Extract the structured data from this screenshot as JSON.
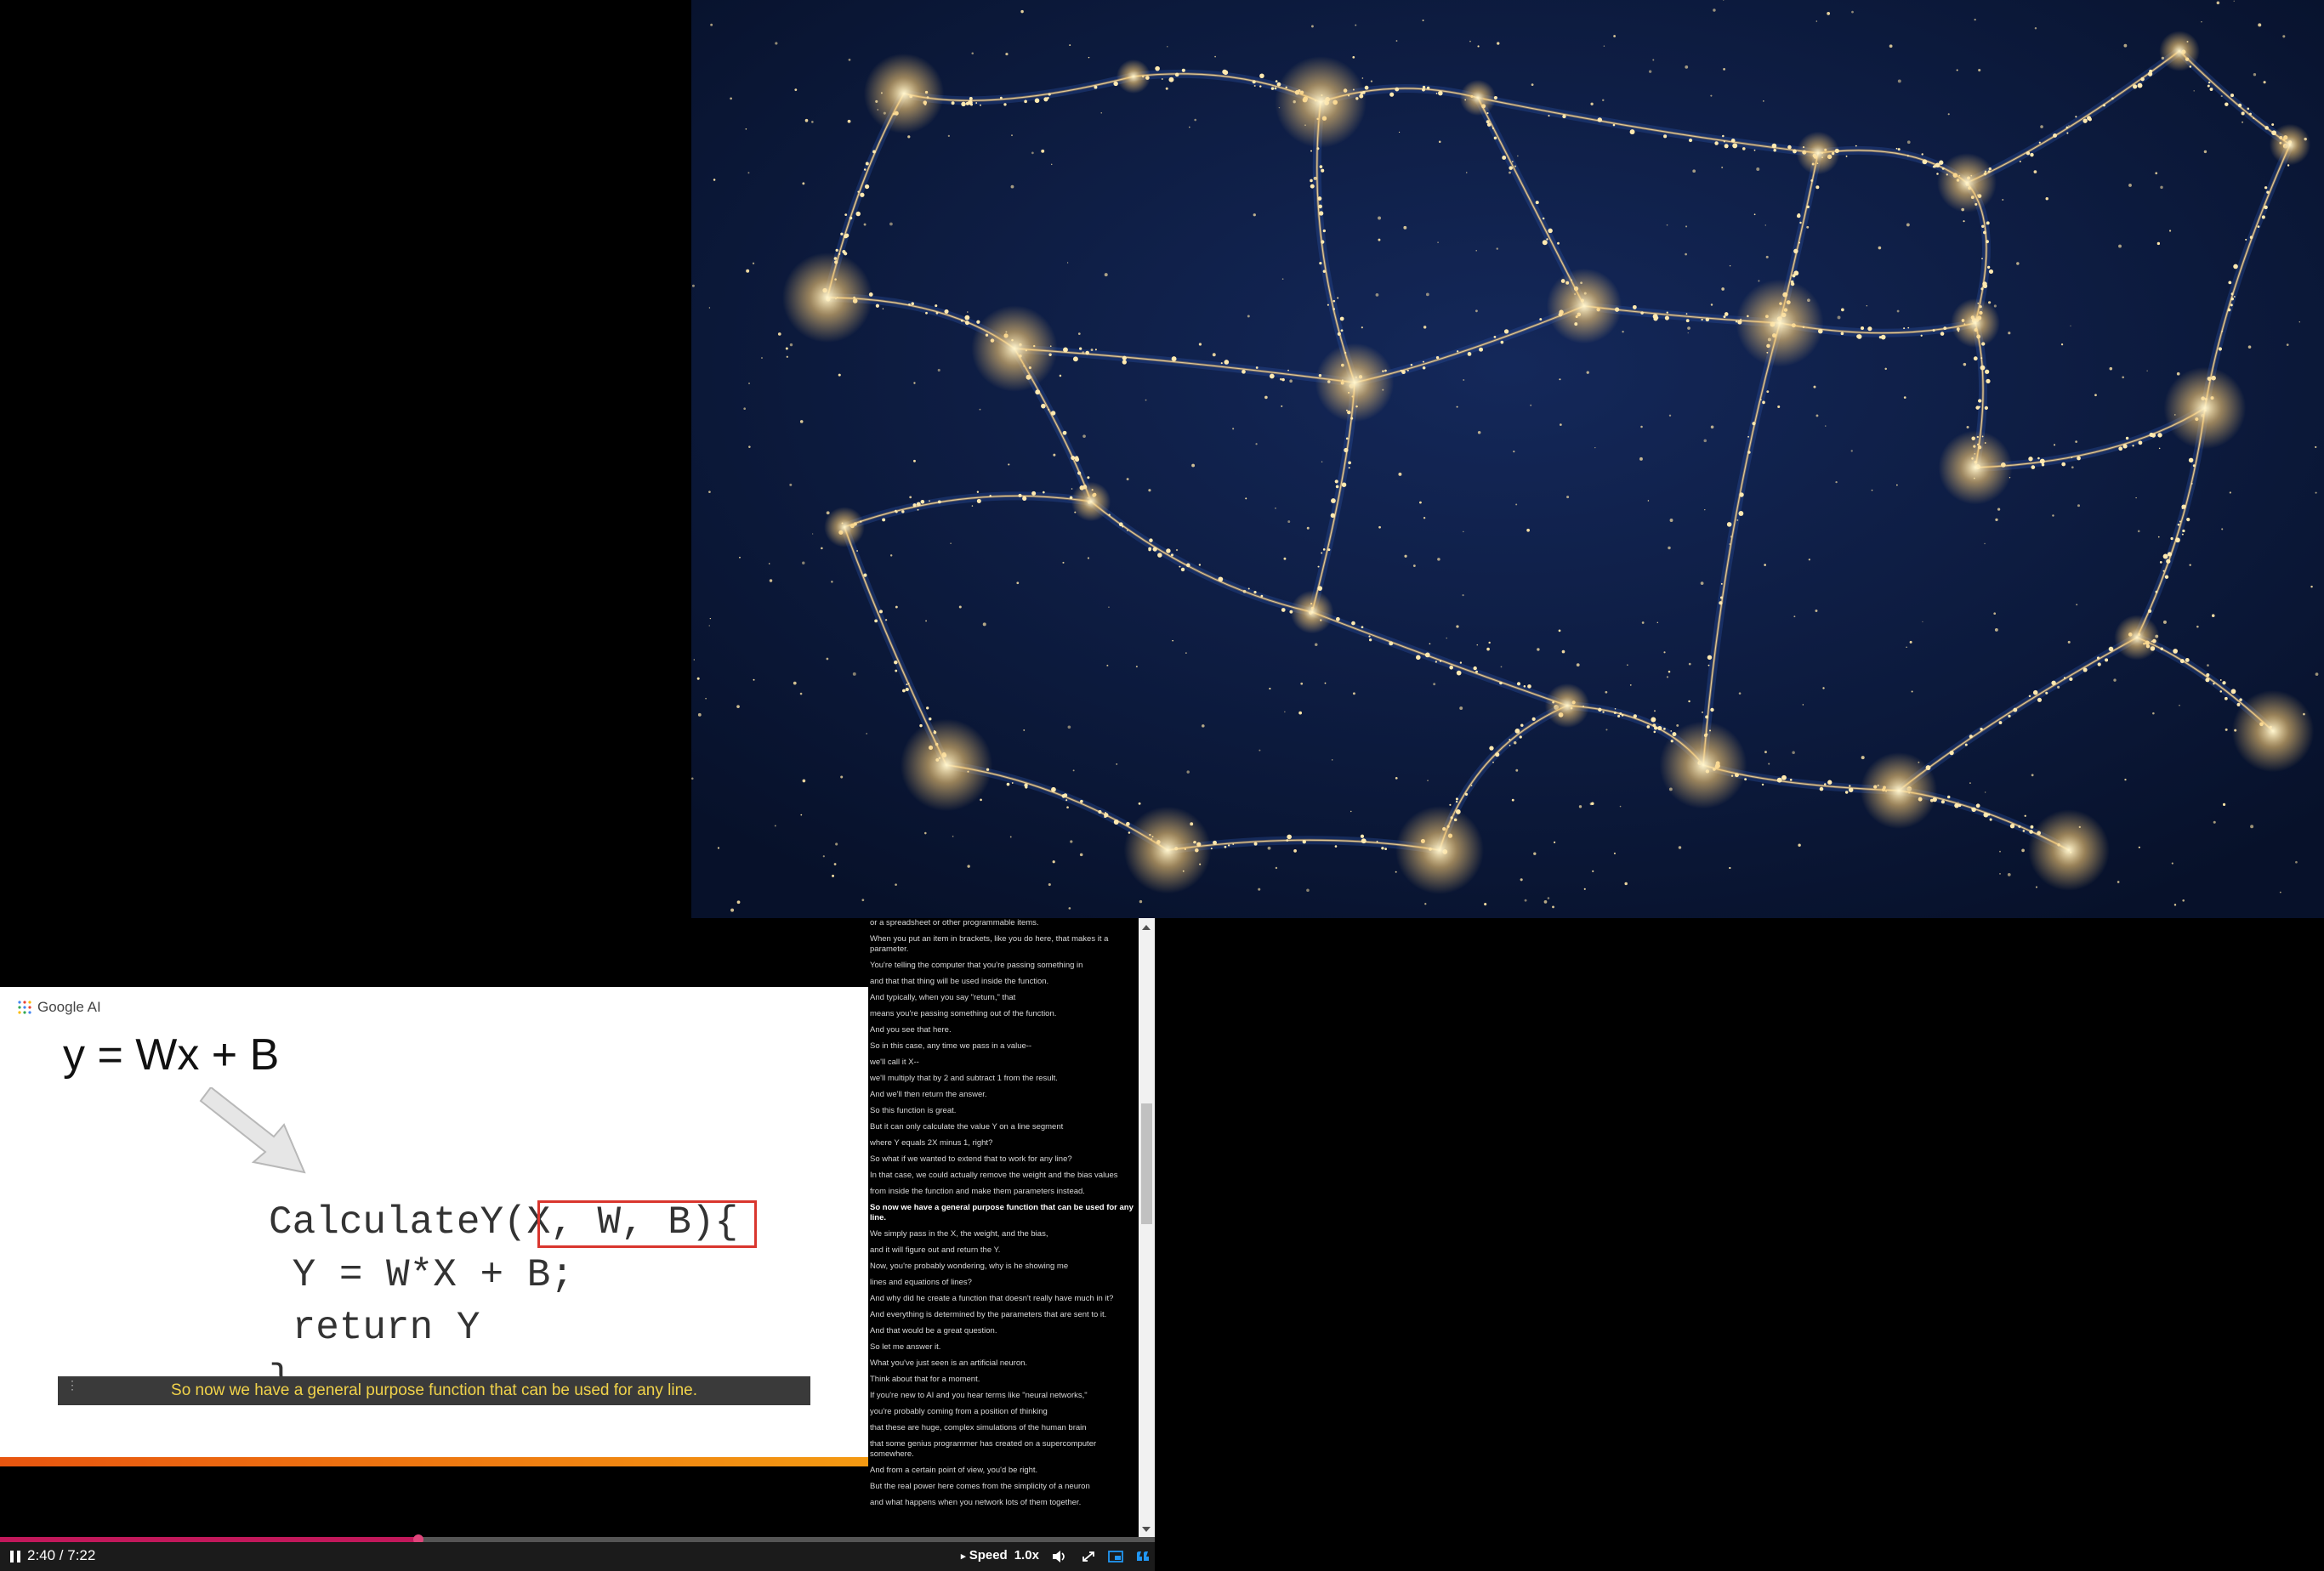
{
  "slide": {
    "logo_text": "Google AI",
    "equation": "y = Wx + B",
    "code_line1_name": "CalculateY",
    "code_line1_params": "(X, W, B)",
    "code_line1_brace": "{",
    "code_line2": " Y = W*X + B;",
    "code_line3": " return Y",
    "code_line4": "}",
    "caption": "So now we have a general purpose function that can be used for any line."
  },
  "transcript": {
    "lines": [
      {
        "text": "or a spreadsheet or other programmable items.",
        "active": false
      },
      {
        "text": "When you put an item in brackets, like you do here, that makes it a parameter.",
        "active": false
      },
      {
        "text": "You're telling the computer that you're passing something in",
        "active": false
      },
      {
        "text": "and that that thing will be used inside the function.",
        "active": false
      },
      {
        "text": "And typically, when you say \"return,\" that",
        "active": false
      },
      {
        "text": "means you're passing something out of the function.",
        "active": false
      },
      {
        "text": "And you see that here.",
        "active": false
      },
      {
        "text": "So in this case, any time we pass in a value--",
        "active": false
      },
      {
        "text": "we'll call it X--",
        "active": false
      },
      {
        "text": "we'll multiply that by 2 and subtract 1 from the result.",
        "active": false
      },
      {
        "text": "And we'll then return the answer.",
        "active": false
      },
      {
        "text": "So this function is great.",
        "active": false
      },
      {
        "text": "But it can only calculate the value Y on a line segment",
        "active": false
      },
      {
        "text": "where Y equals 2X minus 1, right?",
        "active": false
      },
      {
        "text": "So what if we wanted to extend that to work for any line?",
        "active": false
      },
      {
        "text": "In that case, we could actually remove the weight and the bias values",
        "active": false
      },
      {
        "text": "from inside the function and make them parameters instead.",
        "active": false
      },
      {
        "text": "So now we have a general purpose function that can be used for any line.",
        "active": true
      },
      {
        "text": "We simply pass in the X, the weight, and the bias,",
        "active": false
      },
      {
        "text": "and it will figure out and return the Y.",
        "active": false
      },
      {
        "text": "Now, you're probably wondering, why is he showing me",
        "active": false
      },
      {
        "text": "lines and equations of lines?",
        "active": false
      },
      {
        "text": "And why did he create a function that doesn't really have much in it?",
        "active": false
      },
      {
        "text": "And everything is determined by the parameters that are sent to it.",
        "active": false
      },
      {
        "text": "And that would be a great question.",
        "active": false
      },
      {
        "text": "So let me answer it.",
        "active": false
      },
      {
        "text": "What you've just seen is an artificial neuron.",
        "active": false
      },
      {
        "text": "Think about that for a moment.",
        "active": false
      },
      {
        "text": "If you're new to AI and you hear terms like \"neural networks,\"",
        "active": false
      },
      {
        "text": "you're probably coming from a position of thinking",
        "active": false
      },
      {
        "text": "that these are huge, complex simulations of the human brain",
        "active": false
      },
      {
        "text": "that some genius programmer has created on a supercomputer somewhere.",
        "active": false
      },
      {
        "text": "And from a certain point of view, you'd be right.",
        "active": false
      },
      {
        "text": "But the real power here comes from the simplicity of a neuron",
        "active": false
      },
      {
        "text": "and what happens when you network lots of them together.",
        "active": false
      }
    ]
  },
  "player": {
    "time": "2:40 / 7:22",
    "progress": 0.362,
    "speed_label": "Speed",
    "speed_value": "1.0x",
    "icons": [
      "pause-icon",
      "volume-icon",
      "fullscreen-icon",
      "pip-icon",
      "captions-icon"
    ]
  },
  "colors": {
    "progress_fill": "#c2185b",
    "caption_text": "#f0d24a",
    "highlight_box": "#d9362e",
    "cosmic_background": "#0a1530"
  }
}
